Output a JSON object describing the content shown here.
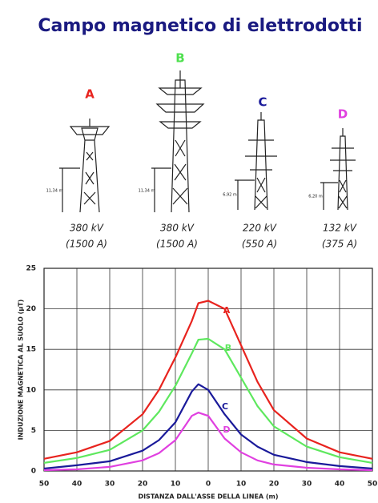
{
  "chart_data": {
    "type": "line",
    "title": "Campo magnetico di elettrodotti",
    "x_label": "DISTANZA DALL'ASSE DELLA LINEA (m)",
    "y_label": "INDUZIONE MAGNETICA AL SUOLO (µT)",
    "x": [
      -50,
      -40,
      -30,
      -20,
      -15,
      -10,
      -5,
      -3,
      0,
      5,
      10,
      15,
      20,
      30,
      40,
      50
    ],
    "series": [
      {
        "name": "A",
        "color": "#e8231e",
        "values": [
          1.5,
          2.3,
          3.7,
          7,
          10,
          14,
          18.5,
          20.7,
          21,
          20,
          15.5,
          11,
          7.5,
          4,
          2.3,
          1.5
        ]
      },
      {
        "name": "B",
        "color": "#5ee85e",
        "values": [
          1.0,
          1.6,
          2.6,
          5,
          7.3,
          10.5,
          14.5,
          16.2,
          16.3,
          15,
          11.5,
          8,
          5.5,
          3,
          1.7,
          1.0
        ]
      },
      {
        "name": "C",
        "color": "#1a1a9a",
        "values": [
          0.3,
          0.7,
          1.2,
          2.5,
          3.8,
          6,
          9.8,
          10.7,
          10,
          7,
          4.5,
          3,
          2,
          1.1,
          0.6,
          0.3
        ]
      },
      {
        "name": "D",
        "color": "#e040e0",
        "values": [
          0.1,
          0.2,
          0.5,
          1.3,
          2.2,
          3.8,
          6.8,
          7.2,
          6.8,
          4,
          2.3,
          1.3,
          0.8,
          0.4,
          0.2,
          0.1
        ]
      }
    ],
    "xlim": [
      -50,
      50
    ],
    "xticks": [
      {
        "value": -50,
        "label": "50"
      },
      {
        "value": -40,
        "label": "40"
      },
      {
        "value": -30,
        "label": "30"
      },
      {
        "value": -20,
        "label": "20"
      },
      {
        "value": -10,
        "label": "10"
      },
      0,
      10,
      20,
      30,
      40,
      50
    ],
    "ylim": [
      0,
      25
    ],
    "yticks": [
      0,
      5,
      10,
      15,
      20,
      25
    ],
    "grid": true
  },
  "towers": [
    {
      "label": "A",
      "color": "#e8231e",
      "voltage": "380 kV",
      "current": "(1500 A)",
      "height": "11,34 m"
    },
    {
      "label": "B",
      "color": "#4ee04e",
      "voltage": "380 kV",
      "current": "(1500 A)",
      "height": "11,34 m"
    },
    {
      "label": "C",
      "color": "#1a1a9a",
      "voltage": "220 kV",
      "current": "(550 A)",
      "height": "6,92 m"
    },
    {
      "label": "D",
      "color": "#e040e0",
      "voltage": "132 kV",
      "current": "(375 A)",
      "height": "6,20 m"
    }
  ]
}
